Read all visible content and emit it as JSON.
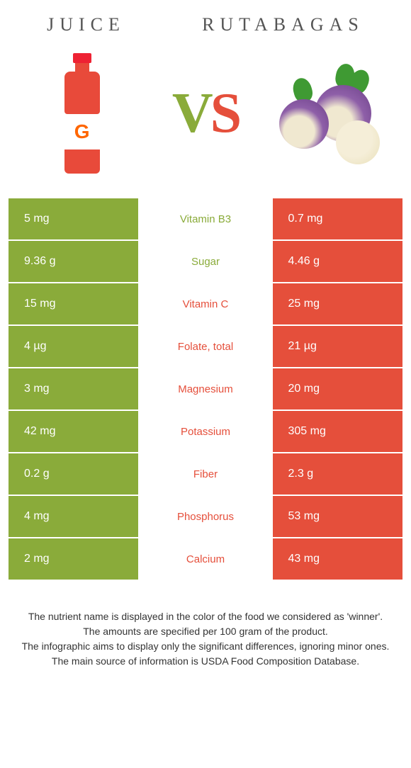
{
  "header": {
    "left_title": "Juice",
    "right_title": "Rutabagas",
    "vs_v": "V",
    "vs_s": "S"
  },
  "colors": {
    "left_bar": "#8aab3a",
    "right_bar": "#e54f3b",
    "mid_green": "#8aab3a",
    "mid_red": "#e54f3b"
  },
  "rows": [
    {
      "left": "5 mg",
      "label": "Vitamin B3",
      "right": "0.7 mg",
      "winner": "left"
    },
    {
      "left": "9.36 g",
      "label": "Sugar",
      "right": "4.46 g",
      "winner": "left"
    },
    {
      "left": "15 mg",
      "label": "Vitamin C",
      "right": "25 mg",
      "winner": "right"
    },
    {
      "left": "4 µg",
      "label": "Folate, total",
      "right": "21 µg",
      "winner": "right"
    },
    {
      "left": "3 mg",
      "label": "Magnesium",
      "right": "20 mg",
      "winner": "right"
    },
    {
      "left": "42 mg",
      "label": "Potassium",
      "right": "305 mg",
      "winner": "right"
    },
    {
      "left": "0.2 g",
      "label": "Fiber",
      "right": "2.3 g",
      "winner": "right"
    },
    {
      "left": "4 mg",
      "label": "Phosphorus",
      "right": "53 mg",
      "winner": "right"
    },
    {
      "left": "2 mg",
      "label": "Calcium",
      "right": "43 mg",
      "winner": "right"
    }
  ],
  "footer": {
    "line1": "The nutrient name is displayed in the color of the food we considered as 'winner'.",
    "line2": "The amounts are specified per 100 gram of the product.",
    "line3": "The infographic aims to display only the significant differences, ignoring minor ones.",
    "line4": "The main source of information is USDA Food Composition Database."
  }
}
